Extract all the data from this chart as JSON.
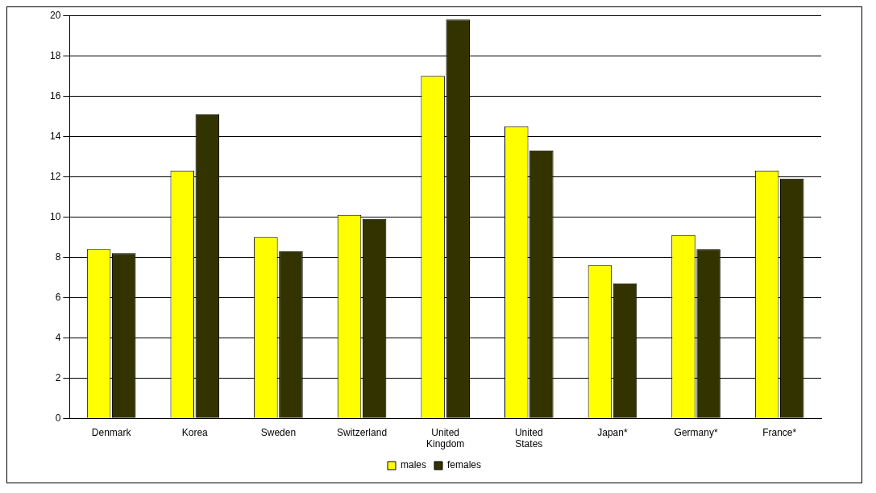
{
  "chart_data": {
    "type": "bar",
    "categories": [
      "Denmark",
      "Korea",
      "Sweden",
      "Switzerland",
      "United Kingdom",
      "United States",
      "Japan*",
      "Germany*",
      "France*"
    ],
    "series": [
      {
        "name": "males",
        "color": "#ffff00",
        "values": [
          8.4,
          12.3,
          9.0,
          10.1,
          17.0,
          14.5,
          7.6,
          9.1,
          12.3
        ]
      },
      {
        "name": "females",
        "color": "#333300",
        "values": [
          8.2,
          15.1,
          8.3,
          9.9,
          19.8,
          13.3,
          6.7,
          8.4,
          11.9
        ]
      }
    ],
    "ylim": [
      0,
      20
    ],
    "yticks": [
      0,
      2,
      4,
      6,
      8,
      10,
      12,
      14,
      16,
      18,
      20
    ],
    "grid": "y",
    "legend": "bottom"
  }
}
